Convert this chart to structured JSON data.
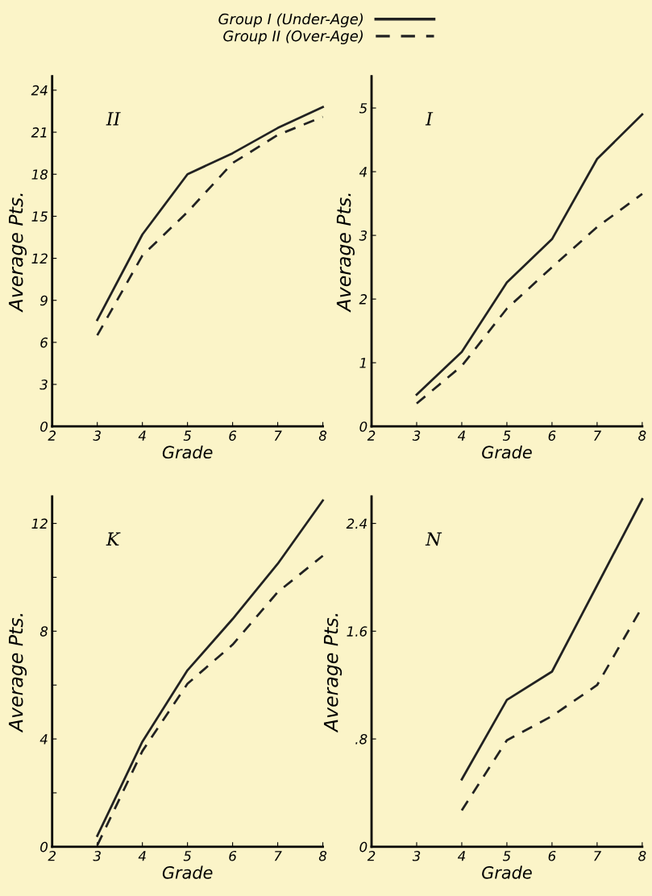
{
  "chart_data": [
    {
      "type": "line",
      "annotations": [
        "II"
      ],
      "xlabel": "Grade",
      "ylabel": "Average Pts.",
      "x": [
        3,
        4,
        5,
        6,
        7,
        8
      ],
      "xlim": [
        2,
        8
      ],
      "xticks": [
        2,
        3,
        4,
        5,
        6,
        7,
        8
      ],
      "ylim": [
        0,
        25
      ],
      "yticks": [
        0,
        3,
        6,
        9,
        12,
        15,
        18,
        21,
        24
      ],
      "legend": "top",
      "grid": false,
      "series": [
        {
          "name": "Group I (Under-Age)",
          "color": "#222222",
          "line_style": "solid",
          "values": [
            7.6,
            13.7,
            18.0,
            19.5,
            21.3,
            22.8
          ]
        },
        {
          "name": "Group II (Over-Age)",
          "color": "#222222",
          "line_style": "dashed",
          "values": [
            6.5,
            12.2,
            15.3,
            18.8,
            20.8,
            22.1
          ]
        }
      ]
    },
    {
      "type": "line",
      "annotations": [
        "I"
      ],
      "xlabel": "Grade",
      "ylabel": "Average Pts.",
      "x": [
        3,
        4,
        5,
        6,
        7,
        8
      ],
      "xlim": [
        2,
        8
      ],
      "xticks": [
        2,
        3,
        4,
        5,
        6,
        7,
        8
      ],
      "ylim": [
        0,
        5.5
      ],
      "yticks": [
        0,
        1,
        2,
        3,
        4,
        5
      ],
      "grid": false,
      "series": [
        {
          "color": "#222222",
          "line_style": "solid",
          "values": [
            0.5,
            1.17,
            2.26,
            2.94,
            4.2,
            4.9
          ]
        },
        {
          "color": "#222222",
          "line_style": "dashed",
          "values": [
            0.36,
            0.95,
            1.85,
            2.5,
            3.13,
            3.65
          ]
        }
      ]
    },
    {
      "type": "line",
      "annotations": [
        "K"
      ],
      "xlabel": "Grade",
      "ylabel": "Average Pts.",
      "x": [
        3,
        4,
        5,
        6,
        7,
        8
      ],
      "xlim": [
        2,
        8
      ],
      "xticks": [
        2,
        3,
        4,
        5,
        6,
        7,
        8
      ],
      "ylim": [
        0,
        13
      ],
      "yticks": [
        0,
        {
          "value": 2,
          "label": null
        },
        4,
        {
          "value": 6,
          "label": null
        },
        8,
        {
          "value": 10,
          "label": null
        },
        12
      ],
      "grid": false,
      "series": [
        {
          "color": "#222222",
          "line_style": "solid",
          "values": [
            0.4,
            3.9,
            6.55,
            8.45,
            10.5,
            12.85
          ]
        },
        {
          "color": "#222222",
          "line_style": "dashed",
          "values": [
            0.05,
            3.55,
            6.05,
            7.5,
            9.45,
            10.8
          ]
        }
      ]
    },
    {
      "type": "line",
      "annotations": [
        "N"
      ],
      "xlabel": "Grade",
      "ylabel": "Average Pts.",
      "x": [
        4,
        5,
        6,
        7,
        8
      ],
      "xlim": [
        2,
        8
      ],
      "xticks": [
        2,
        3,
        4,
        5,
        6,
        7,
        8
      ],
      "ylim": [
        0,
        2.6
      ],
      "yticks": [
        0,
        {
          "value": 0.8,
          "label": ".8"
        },
        1.6,
        2.4
      ],
      "grid": false,
      "series": [
        {
          "color": "#222222",
          "line_style": "solid",
          "values": [
            0.5,
            1.09,
            1.3,
            1.94,
            2.58
          ]
        },
        {
          "color": "#222222",
          "line_style": "dashed",
          "values": [
            0.27,
            0.79,
            0.97,
            1.2,
            1.78
          ]
        }
      ]
    }
  ]
}
